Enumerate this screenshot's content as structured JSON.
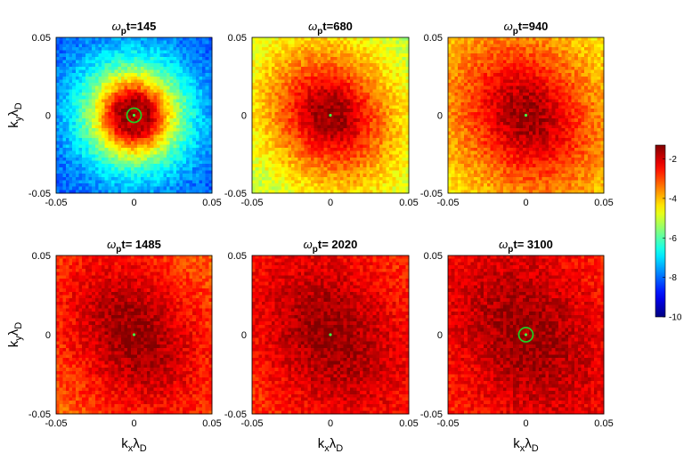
{
  "chart_data": {
    "type": "heatmap",
    "panels": [
      {
        "title_prefix": "ω",
        "title_sub": "p",
        "title_suffix": "t=145",
        "time": 145,
        "xlim": [
          -0.05,
          0.05
        ],
        "ylim": [
          -0.05,
          0.05
        ],
        "core_level": -1.7,
        "edge_level": -8.3,
        "core_radius": 0.01,
        "falloff": 0.022,
        "green_circle": true,
        "show_ylabel": true,
        "show_xlabel": false
      },
      {
        "title_prefix": "ω",
        "title_sub": "p",
        "title_suffix": "t=680",
        "time": 680,
        "xlim": [
          -0.05,
          0.05
        ],
        "ylim": [
          -0.05,
          0.05
        ],
        "core_level": -1.6,
        "edge_level": -5.8,
        "core_radius": 0.008,
        "falloff": 0.04,
        "green_circle": false,
        "show_ylabel": false,
        "show_xlabel": false
      },
      {
        "title_prefix": "ω",
        "title_sub": "p",
        "title_suffix": "t=940",
        "time": 940,
        "xlim": [
          -0.05,
          0.05
        ],
        "ylim": [
          -0.05,
          0.05
        ],
        "core_level": -1.6,
        "edge_level": -5.2,
        "core_radius": 0.008,
        "falloff": 0.05,
        "green_circle": false,
        "show_ylabel": false,
        "show_xlabel": false
      },
      {
        "title_prefix": "ω",
        "title_sub": "p",
        "title_suffix": "t= 1485",
        "time": 1485,
        "xlim": [
          -0.05,
          0.05
        ],
        "ylim": [
          -0.05,
          0.05
        ],
        "core_level": -1.5,
        "edge_level": -3.9,
        "core_radius": 0.008,
        "falloff": 0.06,
        "green_circle": false,
        "show_ylabel": true,
        "show_xlabel": true
      },
      {
        "title_prefix": "ω",
        "title_sub": "p",
        "title_suffix": "t= 2020",
        "time": 2020,
        "xlim": [
          -0.05,
          0.05
        ],
        "ylim": [
          -0.05,
          0.05
        ],
        "core_level": -1.5,
        "edge_level": -3.6,
        "core_radius": 0.008,
        "falloff": 0.07,
        "green_circle": false,
        "show_ylabel": false,
        "show_xlabel": true
      },
      {
        "title_prefix": "ω",
        "title_sub": "p",
        "title_suffix": "t= 3100",
        "time": 3100,
        "xlim": [
          -0.05,
          0.05
        ],
        "ylim": [
          -0.05,
          0.05
        ],
        "core_level": -1.5,
        "edge_level": -3.4,
        "core_radius": 0.008,
        "falloff": 0.075,
        "green_circle": true,
        "show_ylabel": false,
        "show_xlabel": true
      }
    ],
    "xtick_labels": [
      "-0.05",
      "0",
      "0.05"
    ],
    "ytick_labels": [
      "0.05",
      "0",
      "-0.05"
    ],
    "xlabel": {
      "main": "k",
      "sub": "x",
      "main2": "λ",
      "sub2": "D"
    },
    "ylabel": {
      "main": "k",
      "sub": "y",
      "main2": "λ",
      "sub2": "D"
    },
    "colorbar": {
      "range": [
        -10,
        -1.3
      ],
      "ticks": [
        "-2",
        "-4",
        "-6",
        "-8",
        "-10"
      ],
      "tick_values": [
        -2,
        -4,
        -6,
        -8,
        -10
      ],
      "colormap": "jet"
    },
    "colors": {
      "marker_circle": "#22cc22",
      "center_dot": "#44ee44"
    }
  }
}
